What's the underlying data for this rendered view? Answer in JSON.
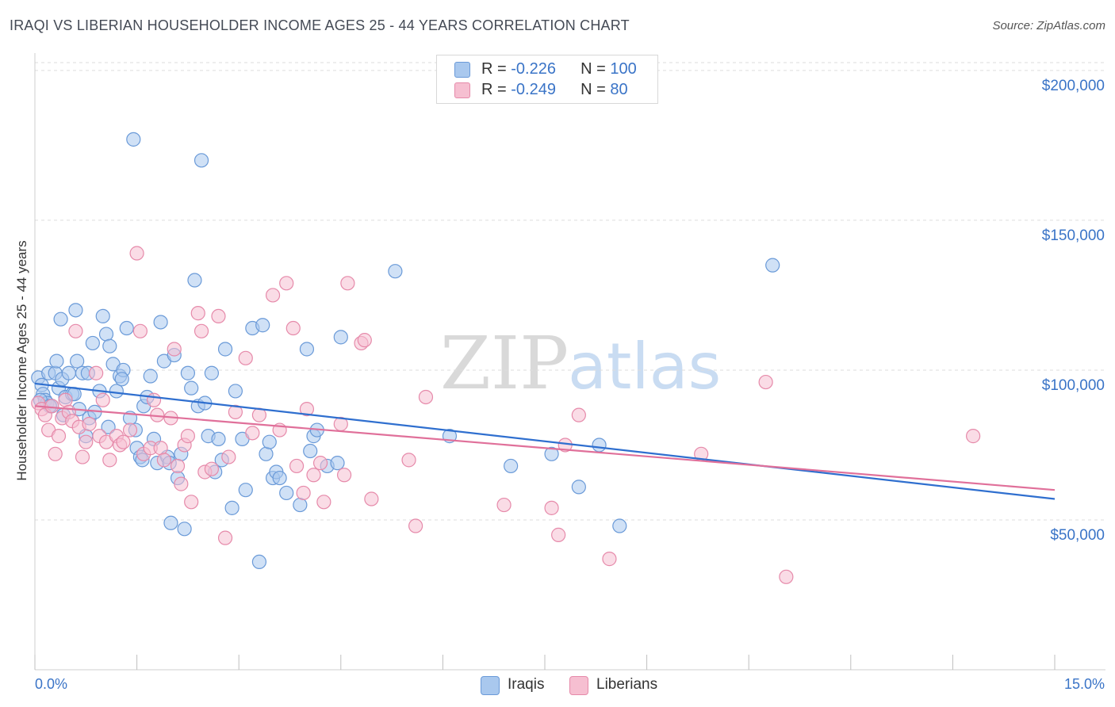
{
  "title": "IRAQI VS LIBERIAN HOUSEHOLDER INCOME AGES 25 - 44 YEARS CORRELATION CHART",
  "source": "Source: ZipAtlas.com",
  "watermark": {
    "zip": "ZIP",
    "atlas": "atlas"
  },
  "legend": {
    "iraqis": {
      "r_label": "R =",
      "r_value": "-0.226",
      "n_label": "N =",
      "n_value": "100"
    },
    "liberians": {
      "r_label": "R =",
      "r_value": "-0.249",
      "n_label": "N =",
      "n_value": "80"
    }
  },
  "colors": {
    "iraqis_fill": "#a9c8ee",
    "iraqis_stroke": "#6a9ad8",
    "iraqis_line": "#2f6fcf",
    "liberians_fill": "#f6bfd1",
    "liberians_stroke": "#e68aaa",
    "liberians_line": "#e0709a",
    "axis_label": "#3a74c7",
    "grid": "#dddddd"
  },
  "chart_data": {
    "type": "scatter",
    "title": "IRAQI VS LIBERIAN HOUSEHOLDER INCOME AGES 25 - 44 YEARS CORRELATION CHART",
    "xlabel": "",
    "ylabel": "Householder Income Ages 25 - 44 years",
    "xlim": [
      0,
      15
    ],
    "ylim": [
      0,
      205000
    ],
    "x_tick_labels": [
      "0.0%",
      "15.0%"
    ],
    "y_ticks": [
      50000,
      100000,
      150000,
      200000
    ],
    "y_tick_labels": [
      "$50,000",
      "$100,000",
      "$150,000",
      "$200,000"
    ],
    "grid": "horizontal dashed",
    "legend_position": "top-center",
    "series": [
      {
        "name": "Iraqis",
        "trend": {
          "x": [
            0,
            15
          ],
          "y": [
            95500,
            57000
          ]
        },
        "points": [
          [
            0.05,
            97500
          ],
          [
            0.1,
            95000
          ],
          [
            0.12,
            92000
          ],
          [
            0.15,
            90000
          ],
          [
            0.18,
            89000
          ],
          [
            0.2,
            99000
          ],
          [
            0.25,
            88000
          ],
          [
            0.3,
            99000
          ],
          [
            0.32,
            103000
          ],
          [
            0.35,
            94000
          ],
          [
            0.38,
            117000
          ],
          [
            0.4,
            97000
          ],
          [
            0.45,
            91000
          ],
          [
            0.5,
            99000
          ],
          [
            0.55,
            92000
          ],
          [
            0.6,
            120000
          ],
          [
            0.62,
            103000
          ],
          [
            0.65,
            87000
          ],
          [
            0.7,
            99000
          ],
          [
            0.75,
            78000
          ],
          [
            0.8,
            84000
          ],
          [
            0.85,
            109000
          ],
          [
            0.88,
            86000
          ],
          [
            0.95,
            93000
          ],
          [
            1.0,
            118000
          ],
          [
            1.05,
            112000
          ],
          [
            1.1,
            108000
          ],
          [
            1.15,
            102000
          ],
          [
            1.2,
            93000
          ],
          [
            1.25,
            98000
          ],
          [
            1.3,
            100000
          ],
          [
            1.35,
            114000
          ],
          [
            1.4,
            84000
          ],
          [
            1.45,
            177000
          ],
          [
            1.5,
            74000
          ],
          [
            1.55,
            71000
          ],
          [
            1.6,
            88000
          ],
          [
            1.65,
            91000
          ],
          [
            1.7,
            98000
          ],
          [
            1.75,
            77000
          ],
          [
            1.8,
            69000
          ],
          [
            1.85,
            116000
          ],
          [
            1.9,
            103000
          ],
          [
            1.95,
            71000
          ],
          [
            2.0,
            49000
          ],
          [
            2.05,
            105000
          ],
          [
            2.1,
            64000
          ],
          [
            2.15,
            72000
          ],
          [
            2.2,
            47000
          ],
          [
            2.25,
            99000
          ],
          [
            2.3,
            94000
          ],
          [
            2.35,
            130000
          ],
          [
            2.4,
            88000
          ],
          [
            2.45,
            170000
          ],
          [
            2.5,
            89000
          ],
          [
            2.55,
            78000
          ],
          [
            2.6,
            99000
          ],
          [
            2.65,
            66000
          ],
          [
            2.7,
            77000
          ],
          [
            2.75,
            70000
          ],
          [
            2.8,
            107000
          ],
          [
            2.9,
            54000
          ],
          [
            2.95,
            93000
          ],
          [
            3.05,
            77000
          ],
          [
            3.1,
            60000
          ],
          [
            3.2,
            114000
          ],
          [
            3.3,
            36000
          ],
          [
            3.35,
            115000
          ],
          [
            3.4,
            72000
          ],
          [
            3.45,
            76000
          ],
          [
            3.5,
            64000
          ],
          [
            3.55,
            66000
          ],
          [
            3.6,
            64000
          ],
          [
            3.7,
            59000
          ],
          [
            3.9,
            55000
          ],
          [
            4.0,
            107000
          ],
          [
            4.05,
            73000
          ],
          [
            4.1,
            78000
          ],
          [
            4.15,
            80000
          ],
          [
            4.3,
            68000
          ],
          [
            4.5,
            111000
          ],
          [
            5.3,
            133000
          ],
          [
            6.1,
            78000
          ],
          [
            7.0,
            68000
          ],
          [
            7.6,
            72000
          ],
          [
            8.0,
            61000
          ],
          [
            8.3,
            75000
          ],
          [
            8.6,
            48000
          ],
          [
            10.85,
            135000
          ],
          [
            0.08,
            90000
          ],
          [
            0.22,
            88000
          ],
          [
            0.42,
            85000
          ],
          [
            0.58,
            92000
          ],
          [
            0.78,
            99000
          ],
          [
            1.08,
            81000
          ],
          [
            1.28,
            97000
          ],
          [
            1.48,
            80000
          ],
          [
            1.58,
            70000
          ],
          [
            1.98,
            69000
          ],
          [
            4.45,
            69000
          ]
        ]
      },
      {
        "name": "Liberians",
        "trend": {
          "x": [
            0,
            15
          ],
          "y": [
            88000,
            60000
          ]
        },
        "points": [
          [
            0.05,
            89000
          ],
          [
            0.1,
            87000
          ],
          [
            0.15,
            85000
          ],
          [
            0.2,
            80000
          ],
          [
            0.25,
            88000
          ],
          [
            0.3,
            72000
          ],
          [
            0.35,
            78000
          ],
          [
            0.4,
            84000
          ],
          [
            0.45,
            90000
          ],
          [
            0.5,
            86000
          ],
          [
            0.55,
            83000
          ],
          [
            0.6,
            113000
          ],
          [
            0.65,
            81000
          ],
          [
            0.7,
            71000
          ],
          [
            0.75,
            76000
          ],
          [
            0.8,
            82000
          ],
          [
            0.9,
            99000
          ],
          [
            0.95,
            78000
          ],
          [
            1.0,
            90000
          ],
          [
            1.05,
            76000
          ],
          [
            1.1,
            70000
          ],
          [
            1.2,
            78000
          ],
          [
            1.25,
            75000
          ],
          [
            1.3,
            76000
          ],
          [
            1.4,
            80000
          ],
          [
            1.5,
            139000
          ],
          [
            1.55,
            113000
          ],
          [
            1.6,
            72000
          ],
          [
            1.7,
            74000
          ],
          [
            1.75,
            90000
          ],
          [
            1.8,
            85000
          ],
          [
            1.85,
            74000
          ],
          [
            1.9,
            70000
          ],
          [
            2.0,
            84000
          ],
          [
            2.05,
            107000
          ],
          [
            2.1,
            68000
          ],
          [
            2.15,
            62000
          ],
          [
            2.2,
            75000
          ],
          [
            2.25,
            78000
          ],
          [
            2.3,
            56000
          ],
          [
            2.4,
            119000
          ],
          [
            2.45,
            113000
          ],
          [
            2.5,
            66000
          ],
          [
            2.6,
            67000
          ],
          [
            2.7,
            118000
          ],
          [
            2.8,
            44000
          ],
          [
            2.85,
            71000
          ],
          [
            2.95,
            86000
          ],
          [
            3.1,
            104000
          ],
          [
            3.2,
            79000
          ],
          [
            3.3,
            85000
          ],
          [
            3.5,
            125000
          ],
          [
            3.6,
            80000
          ],
          [
            3.7,
            129000
          ],
          [
            3.8,
            114000
          ],
          [
            3.95,
            59000
          ],
          [
            4.0,
            87000
          ],
          [
            4.1,
            65000
          ],
          [
            4.2,
            69000
          ],
          [
            4.25,
            56000
          ],
          [
            4.5,
            82000
          ],
          [
            4.55,
            65000
          ],
          [
            4.6,
            129000
          ],
          [
            4.8,
            109000
          ],
          [
            4.85,
            110000
          ],
          [
            4.95,
            57000
          ],
          [
            5.5,
            70000
          ],
          [
            5.6,
            48000
          ],
          [
            5.75,
            91000
          ],
          [
            6.9,
            55000
          ],
          [
            7.6,
            54000
          ],
          [
            7.7,
            45000
          ],
          [
            7.8,
            75000
          ],
          [
            8.0,
            85000
          ],
          [
            8.45,
            37000
          ],
          [
            9.8,
            72000
          ],
          [
            10.75,
            96000
          ],
          [
            11.05,
            31000
          ],
          [
            13.8,
            78000
          ],
          [
            3.85,
            68000
          ]
        ]
      }
    ]
  },
  "legend_bottom": {
    "iraqis": "Iraqis",
    "liberians": "Liberians"
  }
}
